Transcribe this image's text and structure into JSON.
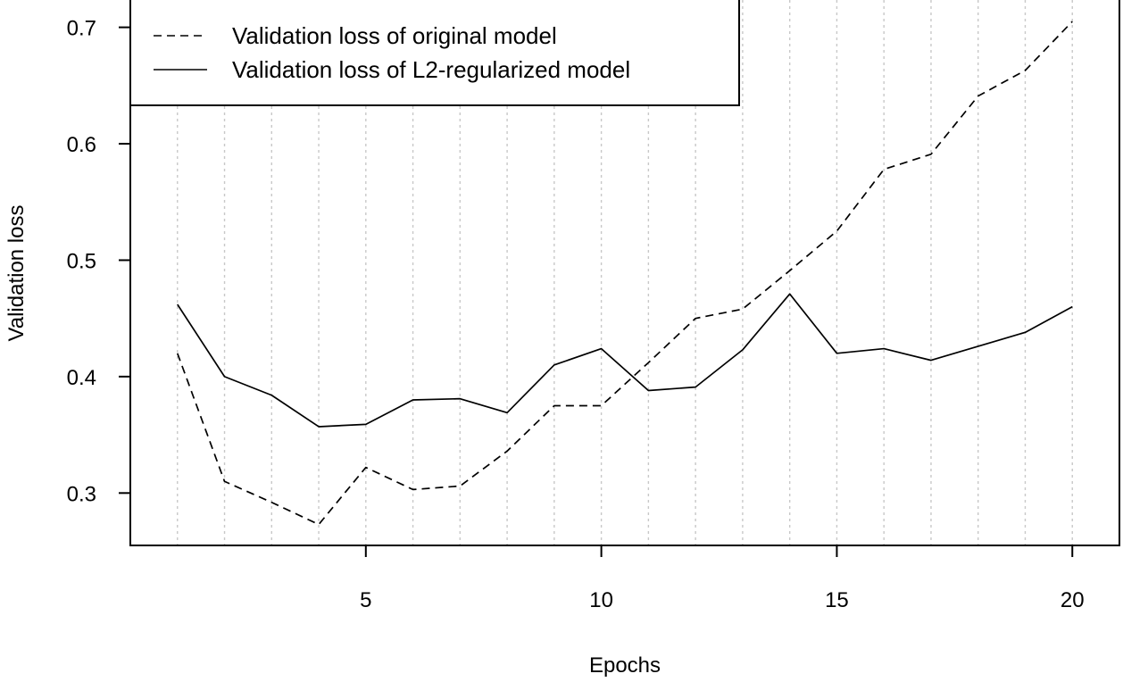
{
  "chart_data": {
    "type": "line",
    "xlabel": "Epochs",
    "ylabel": "Validation loss",
    "xlim": [
      0,
      21
    ],
    "ylim": [
      0.255,
      0.725
    ],
    "x_ticks": [
      5,
      10,
      15,
      20
    ],
    "y_ticks": [
      0.3,
      0.4,
      0.5,
      0.6,
      0.7
    ],
    "vertical_grid": true,
    "legend_position": "top-left",
    "x": [
      1,
      2,
      3,
      4,
      5,
      6,
      7,
      8,
      9,
      10,
      11,
      12,
      13,
      14,
      15,
      16,
      17,
      18,
      19,
      20
    ],
    "series": [
      {
        "name": "Validation loss of original model",
        "line_style": "dashed",
        "color": "#000000",
        "values": [
          0.42,
          0.31,
          0.292,
          0.273,
          0.322,
          0.303,
          0.306,
          0.336,
          0.375,
          0.375,
          0.412,
          0.45,
          0.458,
          0.491,
          0.525,
          0.578,
          0.591,
          0.641,
          0.663,
          0.705
        ]
      },
      {
        "name": "Validation loss of L2-regularized model",
        "line_style": "solid",
        "color": "#000000",
        "values": [
          0.462,
          0.4,
          0.384,
          0.357,
          0.359,
          0.38,
          0.381,
          0.369,
          0.41,
          0.424,
          0.388,
          0.391,
          0.423,
          0.471,
          0.42,
          0.424,
          0.414,
          0.426,
          0.438,
          0.46
        ]
      }
    ]
  }
}
